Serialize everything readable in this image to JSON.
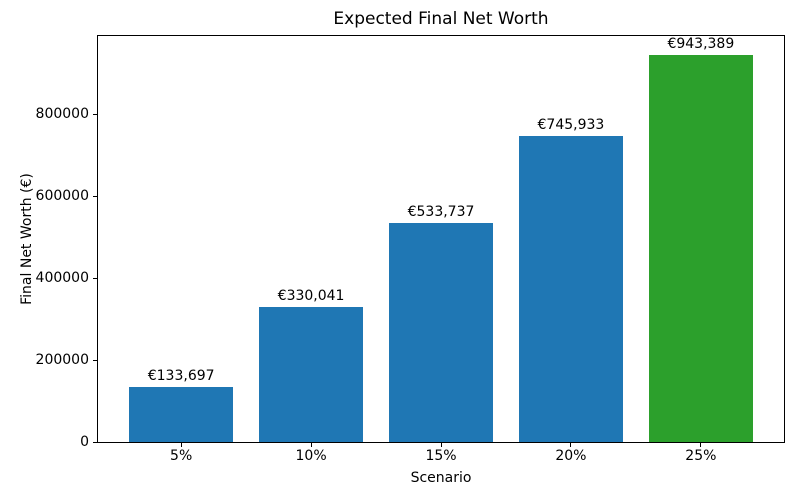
{
  "chart_data": {
    "type": "bar",
    "title": "Expected Final Net Worth",
    "xlabel": "Scenario",
    "ylabel": "Final Net Worth (€)",
    "categories": [
      "5%",
      "10%",
      "15%",
      "20%",
      "25%"
    ],
    "values": [
      133697,
      330041,
      533737,
      745933,
      943389
    ],
    "bar_labels": [
      "€133,697",
      "€330,041",
      "€533,737",
      "€745,933",
      "€943,389"
    ],
    "bar_colors": [
      "#1f77b4",
      "#1f77b4",
      "#1f77b4",
      "#1f77b4",
      "#2ca02c"
    ],
    "ylim": [
      0,
      990558
    ],
    "yticks": [
      0,
      200000,
      400000,
      600000,
      800000
    ],
    "ytick_labels": [
      "0",
      "200000",
      "400000",
      "600000",
      "800000"
    ],
    "grid": false,
    "legend": false,
    "colors": {
      "default_bar": "#1f77b4",
      "highlight_bar": "#2ca02c",
      "spine": "#000000",
      "background": "#ffffff",
      "text": "#000000"
    }
  }
}
